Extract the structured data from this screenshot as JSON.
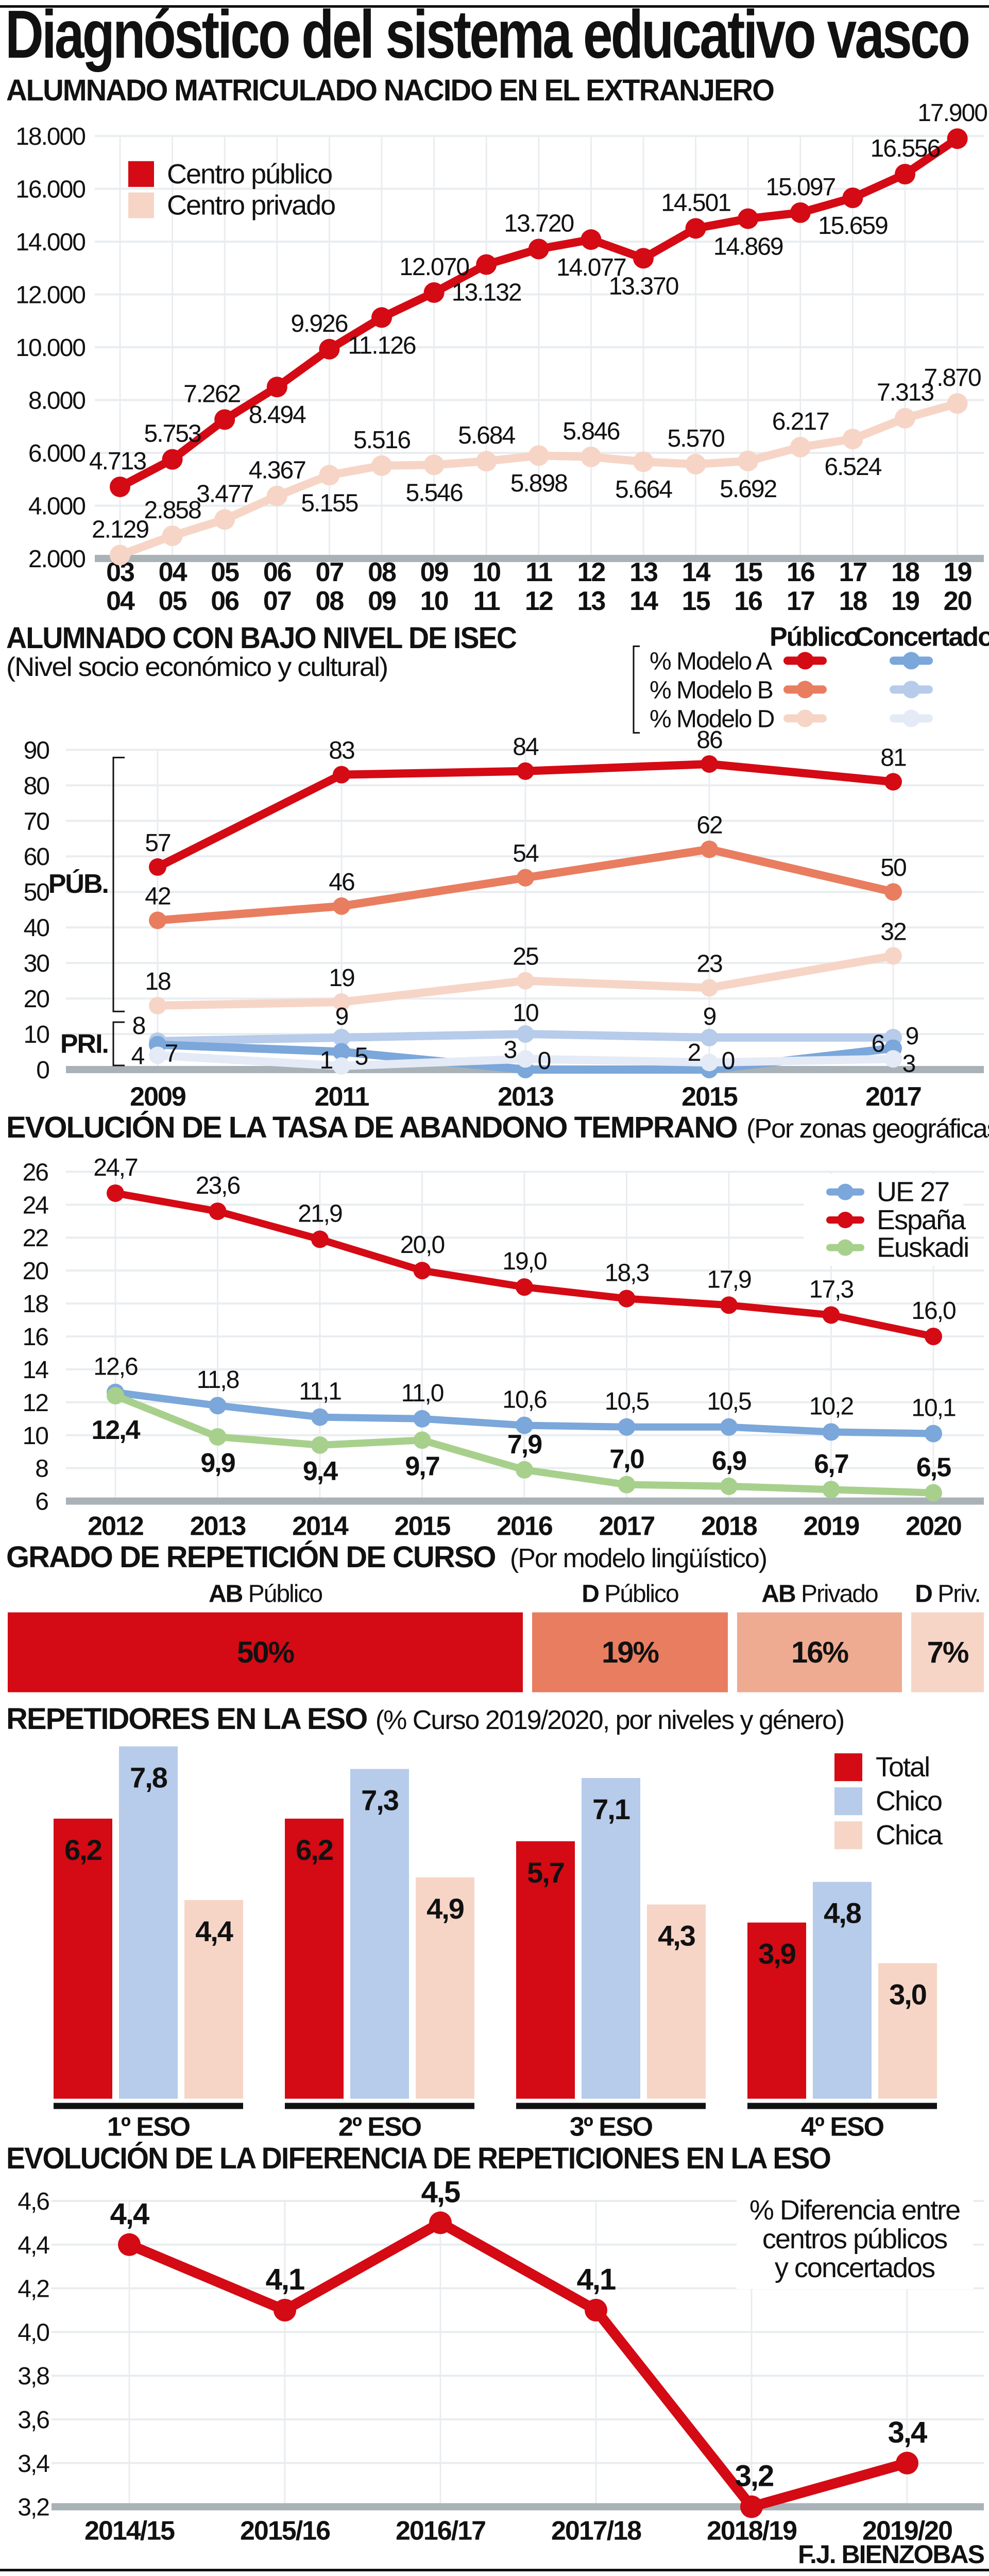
{
  "title": "Diagnóstico del sistema educativo vasco",
  "credit": "F.J. BIENZOBAS",
  "chart_data": [
    {
      "type": "line",
      "title": "ALUMNADO MATRICULADO NACIDO EN EL EXTRANJERO",
      "x": [
        "03/04",
        "04/05",
        "05/06",
        "06/07",
        "07/08",
        "08/09",
        "09/10",
        "10/11",
        "11/12",
        "12/13",
        "13/14",
        "14/15",
        "15/16",
        "16/17",
        "17/18",
        "18/19",
        "19/20"
      ],
      "ylim": [
        2000,
        18000
      ],
      "yticks": [
        2000,
        4000,
        6000,
        8000,
        10000,
        12000,
        14000,
        16000,
        18000
      ],
      "ytick_labels": [
        "2.000",
        "4.000",
        "6.000",
        "8.000",
        "10.000",
        "12.000",
        "14.000",
        "16.000",
        "18.000"
      ],
      "grid": true,
      "legend": "top-left",
      "series": [
        {
          "name": "Centro público",
          "color": "#d40a14",
          "values": [
            4713,
            5753,
            7262,
            8494,
            9926,
            11126,
            12070,
            13132,
            13720,
            14077,
            13370,
            14501,
            14869,
            15097,
            15659,
            16556,
            17900
          ],
          "labels": [
            "4.713",
            "5.753",
            "7.262",
            "8.494",
            "9.926",
            "11.126",
            "12.070",
            "13.132",
            "13.720",
            "14.077",
            "13.370",
            "14.501",
            "14.869",
            "15.097",
            "15.659",
            "16.556",
            "17.900"
          ]
        },
        {
          "name": "Centro privado",
          "color": "#f6d5c7",
          "values": [
            2129,
            2858,
            3477,
            4367,
            5155,
            5516,
            5546,
            5684,
            5898,
            5846,
            5664,
            5570,
            5692,
            6217,
            6524,
            7313,
            7870
          ],
          "labels": [
            "2.129",
            "2.858",
            "3.477",
            "4.367",
            "5.155",
            "5.516",
            "5.546",
            "5.684",
            "5.898",
            "5.846",
            "5.664",
            "5.570",
            "5.692",
            "6.217",
            "6.524",
            "7.313",
            "7.870"
          ]
        }
      ]
    },
    {
      "type": "line",
      "title": "ALUMNADO CON BAJO NIVEL DE ISEC",
      "subtitle": "(Nivel socio económico y cultural)",
      "x": [
        "2009",
        "2011",
        "2013",
        "2015",
        "2017"
      ],
      "ylim": [
        0,
        90
      ],
      "yticks": [
        0,
        10,
        20,
        30,
        40,
        50,
        60,
        70,
        80,
        90
      ],
      "ytick_labels": [
        "0",
        "10",
        "20",
        "30",
        "40",
        "50",
        "60",
        "70",
        "80",
        "90"
      ],
      "grid": true,
      "legend": "top-right",
      "legend_columns": [
        "Público",
        "Concertado"
      ],
      "legend_rows": [
        "% Modelo A",
        "% Modelo B",
        "% Modelo D"
      ],
      "group_labels": {
        "public": "PÚB.",
        "private": "PRI."
      },
      "group_colors": {
        "public": "#d40a14",
        "private": "#7ba7da"
      },
      "series": [
        {
          "name": "Público % Modelo A",
          "color": "#d40a14",
          "values": [
            57,
            83,
            84,
            86,
            81
          ]
        },
        {
          "name": "Público % Modelo B",
          "color": "#e97d5f",
          "values": [
            42,
            46,
            54,
            62,
            50
          ]
        },
        {
          "name": "Público % Modelo D",
          "color": "#f6d5c7",
          "values": [
            18,
            19,
            25,
            23,
            32
          ]
        },
        {
          "name": "Concertado % Modelo B",
          "color": "#b7cbea",
          "values": [
            8,
            9,
            10,
            9,
            9
          ]
        },
        {
          "name": "Concertado % Modelo A",
          "color": "#7ba7da",
          "values": [
            7,
            5,
            0,
            0,
            6
          ]
        },
        {
          "name": "Concertado % Modelo D",
          "color": "#e4eaf6",
          "values": [
            4,
            1,
            3,
            2,
            3
          ]
        }
      ]
    },
    {
      "type": "line",
      "title": "EVOLUCIÓN DE LA TASA DE ABANDONO TEMPRANO",
      "subtitle": "(Por zonas geográficas)",
      "x": [
        "2012",
        "2013",
        "2014",
        "2015",
        "2016",
        "2017",
        "2018",
        "2019",
        "2020"
      ],
      "ylim": [
        6,
        26
      ],
      "yticks": [
        6,
        8,
        10,
        12,
        14,
        16,
        18,
        20,
        22,
        24,
        26
      ],
      "ytick_labels": [
        "6",
        "8",
        "10",
        "12",
        "14",
        "16",
        "18",
        "20",
        "22",
        "24",
        "26"
      ],
      "grid": true,
      "legend": "top-right",
      "series": [
        {
          "name": "UE 27",
          "color": "#7ba7da",
          "values": [
            12.6,
            11.8,
            11.1,
            11.0,
            10.6,
            10.5,
            10.5,
            10.2,
            10.1
          ],
          "labels": [
            "12,6",
            "11,8",
            "11,1",
            "11,0",
            "10,6",
            "10,5",
            "10,5",
            "10,2",
            "10,1"
          ]
        },
        {
          "name": "España",
          "color": "#d40a14",
          "values": [
            24.7,
            23.6,
            21.9,
            20.0,
            19.0,
            18.3,
            17.9,
            17.3,
            16.0
          ],
          "labels": [
            "24,7",
            "23,6",
            "21,9",
            "20,0",
            "19,0",
            "18,3",
            "17,9",
            "17,3",
            "16,0"
          ]
        },
        {
          "name": "Euskadi",
          "color": "#a8d08d",
          "values": [
            12.4,
            9.9,
            9.4,
            9.7,
            7.9,
            7.0,
            6.9,
            6.7,
            6.5
          ],
          "labels": [
            "12,4",
            "9,9",
            "9,4",
            "9,7",
            "7,9",
            "7,0",
            "6,9",
            "6,7",
            "6,5"
          ]
        }
      ]
    },
    {
      "type": "bar",
      "orientation": "horizontal-stacked",
      "title": "GRADO DE REPETICIÓN DE CURSO",
      "subtitle": "(Por modelo lingüístico)",
      "categories": [
        {
          "prefix": "AB",
          "label": "Público"
        },
        {
          "prefix": "D",
          "label": "Público"
        },
        {
          "prefix": "AB",
          "label": "Privado"
        },
        {
          "prefix": "D",
          "label": "Priv."
        }
      ],
      "values": [
        50,
        19,
        16,
        7
      ],
      "value_labels": [
        "50%",
        "19%",
        "16%",
        "7%"
      ],
      "colors": [
        "#d40a14",
        "#e97d5f",
        "#eeab91",
        "#f6d5c7"
      ]
    },
    {
      "type": "bar",
      "title": "REPETIDORES EN LA ESO",
      "subtitle": "(% Curso 2019/2020, por niveles y género)",
      "categories": [
        "1º ESO",
        "2º ESO",
        "3º ESO",
        "4º ESO"
      ],
      "legend": "top-right",
      "series": [
        {
          "name": "Total",
          "color": "#d40a14",
          "values": [
            6.2,
            6.2,
            5.7,
            3.9
          ],
          "labels": [
            "6,2",
            "6,2",
            "5,7",
            "3,9"
          ]
        },
        {
          "name": "Chico",
          "color": "#b7cbea",
          "values": [
            7.8,
            7.3,
            7.1,
            4.8
          ],
          "labels": [
            "7,8",
            "7,3",
            "7,1",
            "4,8"
          ]
        },
        {
          "name": "Chica",
          "color": "#f6d5c7",
          "values": [
            4.4,
            4.9,
            4.3,
            3.0
          ],
          "labels": [
            "4,4",
            "4,9",
            "4,3",
            "3,0"
          ]
        }
      ]
    },
    {
      "type": "line",
      "title": "EVOLUCIÓN DE LA DIFERENCIA DE REPETICIONES EN LA ESO",
      "x": [
        "2014/15",
        "2015/16",
        "2016/17",
        "2017/18",
        "2018/19",
        "2019/20"
      ],
      "ylim": [
        3.2,
        4.6
      ],
      "yticks": [
        3.2,
        3.4,
        3.6,
        3.8,
        4.0,
        4.2,
        4.4,
        4.6
      ],
      "ytick_labels": [
        "3,2",
        "3,4",
        "3,6",
        "3,8",
        "4,0",
        "4,2",
        "4,4",
        "4,6"
      ],
      "grid": true,
      "annotation": [
        "% Diferencia entre",
        "centros públicos",
        "y concertados"
      ],
      "series": [
        {
          "name": "% Diferencia",
          "color": "#d40a14",
          "values": [
            4.4,
            4.1,
            4.5,
            4.1,
            3.2,
            3.4
          ],
          "labels": [
            "4,4",
            "4,1",
            "4,5",
            "4,1",
            "3,2",
            "3,4"
          ]
        }
      ]
    }
  ]
}
